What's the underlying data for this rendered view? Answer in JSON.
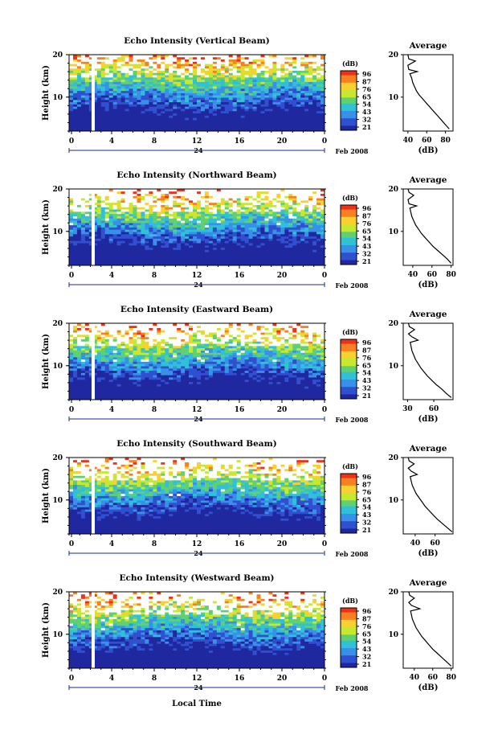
{
  "colorbar": {
    "unit": "(dB)",
    "ticks": [
      "96",
      "87",
      "76",
      "65",
      "54",
      "43",
      "32",
      "21"
    ],
    "colors": [
      "#f03018",
      "#f88020",
      "#f8d030",
      "#c8e830",
      "#60d070",
      "#30c0d8",
      "#3890e8",
      "#3050d0",
      "#2028a0"
    ]
  },
  "shared": {
    "ylabel": "Height (km)",
    "x_ticks": [
      "0",
      "4",
      "8",
      "12",
      "16",
      "20",
      "0"
    ],
    "day_label": "24",
    "month_label": "Feb 2008",
    "xlabel_bottom": "Local Time",
    "avg_title": "Average",
    "avg_xlabel": "(dB)"
  },
  "chart_data": [
    {
      "type": "heatmap",
      "title": "Echo Intensity (Vertical Beam)",
      "ylabel": "Height (km)",
      "x_range_hours": [
        0,
        24
      ],
      "y_range_km": [
        2,
        20
      ],
      "y_ticks": [
        "20",
        "10"
      ],
      "average_profile": {
        "type": "line",
        "xlabel": "(dB)",
        "x_ticks": [
          "40",
          "60",
          "80"
        ],
        "xlim": [
          35,
          88
        ],
        "points": [
          [
            84,
            2.5
          ],
          [
            80,
            3.5
          ],
          [
            76,
            4.5
          ],
          [
            72,
            5.5
          ],
          [
            68,
            6.5
          ],
          [
            64,
            7.5
          ],
          [
            60,
            8.5
          ],
          [
            56,
            9.5
          ],
          [
            52,
            10.5
          ],
          [
            49,
            11.5
          ],
          [
            47,
            12.5
          ],
          [
            45,
            13.5
          ],
          [
            44,
            14.5
          ],
          [
            42,
            15.5
          ],
          [
            50,
            16
          ],
          [
            41,
            16.5
          ],
          [
            40,
            17.5
          ],
          [
            48,
            18.5
          ],
          [
            41,
            19
          ],
          [
            40,
            20
          ]
        ]
      }
    },
    {
      "type": "heatmap",
      "title": "Echo Intensity (Northward Beam)",
      "ylabel": "Height (km)",
      "x_range_hours": [
        0,
        24
      ],
      "y_range_km": [
        2,
        20
      ],
      "y_ticks": [
        "20",
        "10"
      ],
      "average_profile": {
        "type": "line",
        "xlabel": "(dB)",
        "x_ticks": [
          "40",
          "60",
          "80"
        ],
        "xlim": [
          30,
          82
        ],
        "points": [
          [
            80,
            2.5
          ],
          [
            76,
            3.5
          ],
          [
            71,
            4.5
          ],
          [
            66,
            5.5
          ],
          [
            61,
            6.5
          ],
          [
            57,
            7.5
          ],
          [
            53,
            8.5
          ],
          [
            49,
            9.5
          ],
          [
            46,
            10.5
          ],
          [
            43,
            11.5
          ],
          [
            41,
            12.5
          ],
          [
            39,
            13.5
          ],
          [
            38,
            14.5
          ],
          [
            37,
            15.5
          ],
          [
            44,
            16
          ],
          [
            36,
            16.5
          ],
          [
            35,
            17.5
          ],
          [
            41,
            18.5
          ],
          [
            36,
            19.2
          ],
          [
            35,
            20
          ]
        ]
      }
    },
    {
      "type": "heatmap",
      "title": "Echo Intensity (Eastward Beam)",
      "ylabel": "Height (km)",
      "x_range_hours": [
        0,
        24
      ],
      "y_range_km": [
        2,
        20
      ],
      "y_ticks": [
        "20",
        "10"
      ],
      "average_profile": {
        "type": "line",
        "xlabel": "(dB)",
        "x_ticks": [
          "30",
          "60"
        ],
        "xlim": [
          25,
          82
        ],
        "points": [
          [
            80,
            2.5
          ],
          [
            74,
            3.5
          ],
          [
            69,
            4.5
          ],
          [
            63,
            5.5
          ],
          [
            58,
            6.5
          ],
          [
            53,
            7.5
          ],
          [
            49,
            8.5
          ],
          [
            45,
            9.5
          ],
          [
            42,
            10.5
          ],
          [
            39,
            11.5
          ],
          [
            37,
            12.5
          ],
          [
            35,
            13.5
          ],
          [
            34,
            14.5
          ],
          [
            33,
            15.5
          ],
          [
            42,
            16
          ],
          [
            35,
            16.8
          ],
          [
            31,
            17.5
          ],
          [
            38,
            18.5
          ],
          [
            32,
            19.2
          ],
          [
            31,
            20
          ]
        ]
      }
    },
    {
      "type": "heatmap",
      "title": "Echo Intensity (Southward Beam)",
      "ylabel": "Height (km)",
      "x_range_hours": [
        0,
        24
      ],
      "y_range_km": [
        2,
        20
      ],
      "y_ticks": [
        "20",
        "10"
      ],
      "average_profile": {
        "type": "line",
        "xlabel": "(dB)",
        "x_ticks": [
          "40",
          "60"
        ],
        "xlim": [
          28,
          78
        ],
        "points": [
          [
            77,
            2.5
          ],
          [
            72,
            3.5
          ],
          [
            67,
            4.5
          ],
          [
            62,
            5.5
          ],
          [
            58,
            6.5
          ],
          [
            54,
            7.5
          ],
          [
            50,
            8.5
          ],
          [
            47,
            9.5
          ],
          [
            44,
            10.5
          ],
          [
            41,
            11.5
          ],
          [
            39,
            12.5
          ],
          [
            37,
            13.5
          ],
          [
            36,
            14.5
          ],
          [
            35,
            15.5
          ],
          [
            42,
            16
          ],
          [
            36,
            16.8
          ],
          [
            33,
            17.5
          ],
          [
            39,
            18.5
          ],
          [
            34,
            19.2
          ],
          [
            33,
            20
          ]
        ]
      }
    },
    {
      "type": "heatmap",
      "title": "Echo Intensity (Westward Beam)",
      "ylabel": "Height (km)",
      "x_range_hours": [
        0,
        24
      ],
      "y_range_km": [
        2,
        20
      ],
      "y_ticks": [
        "20",
        "10"
      ],
      "average_profile": {
        "type": "line",
        "xlabel": "(dB)",
        "x_ticks": [
          "40",
          "60",
          "80"
        ],
        "xlim": [
          28,
          82
        ],
        "points": [
          [
            80,
            2.5
          ],
          [
            75,
            3.5
          ],
          [
            70,
            4.5
          ],
          [
            65,
            5.5
          ],
          [
            60,
            6.5
          ],
          [
            56,
            7.5
          ],
          [
            52,
            8.5
          ],
          [
            48,
            9.5
          ],
          [
            45,
            10.5
          ],
          [
            42,
            11.5
          ],
          [
            40,
            12.5
          ],
          [
            38,
            13.5
          ],
          [
            37,
            14.5
          ],
          [
            36,
            15.5
          ],
          [
            46,
            16
          ],
          [
            37,
            16.8
          ],
          [
            34,
            17.5
          ],
          [
            40,
            18.5
          ],
          [
            35,
            19.2
          ],
          [
            34,
            20
          ]
        ]
      }
    }
  ]
}
